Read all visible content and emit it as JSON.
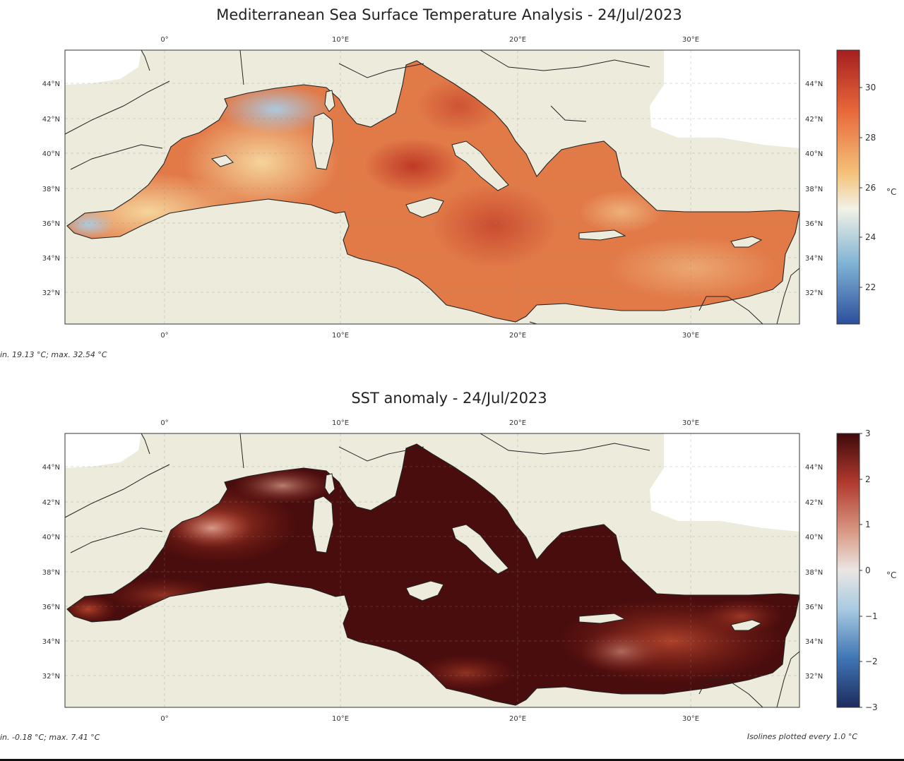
{
  "panels": [
    {
      "title": "Mediterranean Sea Surface Temperature Analysis - 24/Jul/2023",
      "stats": "in. 19.13 °C; max. 32.54 °C",
      "footnote": "",
      "colorbar": {
        "unit": "°C",
        "ticks": [
          "30",
          "28",
          "26",
          "24",
          "22"
        ],
        "range": [
          20.5,
          31.5
        ],
        "colors": [
          "#2c4f9c",
          "#7fb3d5",
          "#f2f2e6",
          "#f4c27a",
          "#e8673a",
          "#a51f1f"
        ]
      },
      "lon_labels": [
        "0°",
        "10°E",
        "20°E",
        "30°E"
      ],
      "lat_labels": [
        "44°N",
        "42°N",
        "40°N",
        "38°N",
        "36°N",
        "34°N",
        "32°N"
      ]
    },
    {
      "title": "SST anomaly - 24/Jul/2023",
      "stats": "in. -0.18 °C; max. 7.41 °C",
      "footnote": "Isolines plotted every 1.0 °C",
      "colorbar": {
        "unit": "°C",
        "ticks": [
          "3",
          "2",
          "1",
          "0",
          "−1",
          "−2",
          "−3"
        ],
        "range": [
          -3,
          3
        ],
        "colors": [
          "#1d2b5e",
          "#3f76b5",
          "#a9cbe2",
          "#ebe6e3",
          "#d99a84",
          "#b13a2f",
          "#3f0a0a"
        ]
      },
      "lon_labels": [
        "0°",
        "10°E",
        "20°E",
        "30°E"
      ],
      "lat_labels": [
        "44°N",
        "42°N",
        "40°N",
        "38°N",
        "36°N",
        "34°N",
        "32°N"
      ]
    }
  ],
  "map_colors": {
    "land": "#ecebdc",
    "coast": "#222222"
  }
}
